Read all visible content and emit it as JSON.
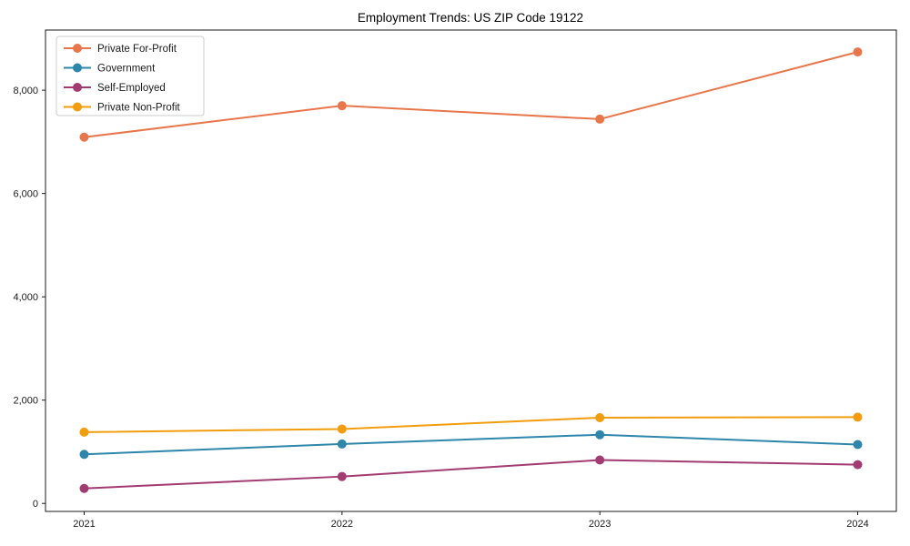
{
  "window": {
    "background_color": "#ffffff"
  },
  "chart_data": {
    "type": "line",
    "title": "Employment Trends: US ZIP Code 19122",
    "xlabel": "",
    "ylabel": "",
    "x": [
      2021,
      2022,
      2023,
      2024
    ],
    "x_tick_labels": [
      "2021",
      "2022",
      "2023",
      "2024"
    ],
    "y_ticks": [
      0,
      2000,
      4000,
      6000,
      8000
    ],
    "y_tick_labels": [
      "0",
      "2,000",
      "4,000",
      "6,000",
      "8,000"
    ],
    "xlim": [
      2020.85,
      2024.15
    ],
    "ylim": [
      -155,
      9165
    ],
    "grid": false,
    "legend_position": "upper-left",
    "axis_color": "#1a1a1a",
    "series": [
      {
        "name": "Private For-Profit",
        "color": "#E8764B",
        "values": [
          7090,
          7700,
          7440,
          8740
        ]
      },
      {
        "name": "Government",
        "color": "#2E86AB",
        "values": [
          950,
          1150,
          1330,
          1140
        ]
      },
      {
        "name": "Self-Employed",
        "color": "#A23B72",
        "values": [
          290,
          520,
          840,
          750
        ]
      },
      {
        "name": "Private Non-Profit",
        "color": "#F19D0E",
        "values": [
          1380,
          1440,
          1660,
          1670
        ]
      }
    ]
  }
}
